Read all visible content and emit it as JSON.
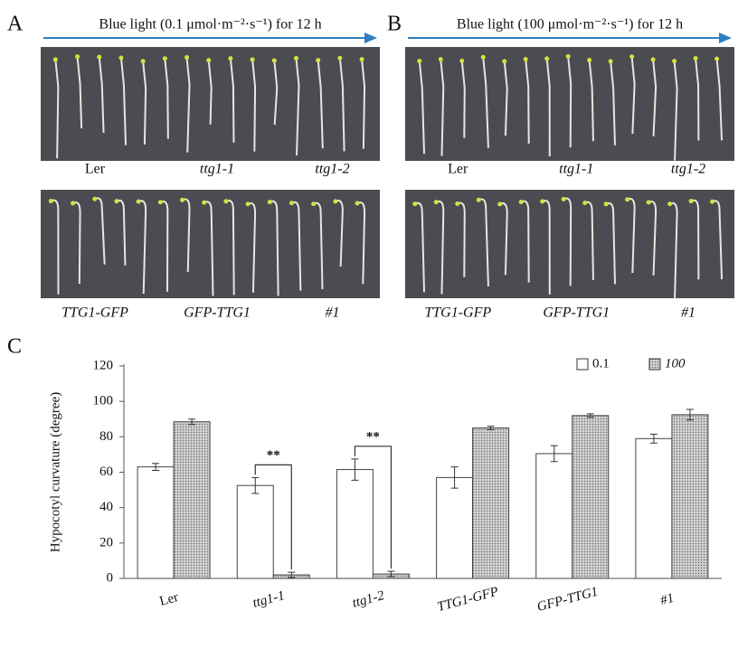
{
  "panels": [
    {
      "letter": "A",
      "title": "Blue light (0.1 μmol·m⁻²·s⁻¹) for 12 h",
      "top_labels": [
        "Ler",
        "ttg1-1",
        "ttg1-2"
      ],
      "bottom_labels": [
        "TTG1-GFP",
        "GFP-TTG1",
        "#1"
      ]
    },
    {
      "letter": "B",
      "title": "Blue light (100 μmol·m⁻²·s⁻¹) for 12 h",
      "top_labels": [
        "Ler",
        "ttg1-1",
        "ttg1-2"
      ],
      "bottom_labels": [
        "TTG1-GFP",
        "GFP-TTG1",
        "#1"
      ]
    }
  ],
  "chart_data": {
    "type": "bar",
    "letter": "C",
    "y_label": "Hypocotyl curvature (degree)",
    "categories": [
      "Ler",
      "ttg1-1",
      "ttg1-2",
      "TTG1-GFP",
      "GFP-TTG1",
      "#1"
    ],
    "series": [
      {
        "name": "0.1",
        "color": "#ffffff",
        "values": [
          63,
          52.5,
          61.5,
          57,
          70.5,
          79
        ],
        "errors": [
          2,
          4.5,
          6,
          6,
          4.5,
          2.5
        ]
      },
      {
        "name": "100",
        "color": "#d0d0d0",
        "values": [
          88.5,
          2,
          2.5,
          85,
          92,
          92.5
        ],
        "errors": [
          1.5,
          1.5,
          1.5,
          1,
          1,
          3
        ]
      }
    ],
    "ylim": [
      0,
      120
    ],
    "yticks": [
      0,
      20,
      40,
      60,
      80,
      100,
      120
    ],
    "annotations": [
      {
        "text": "**",
        "category": "ttg1-1"
      },
      {
        "text": "**",
        "category": "ttg1-2"
      }
    ],
    "legend": "top-right"
  }
}
